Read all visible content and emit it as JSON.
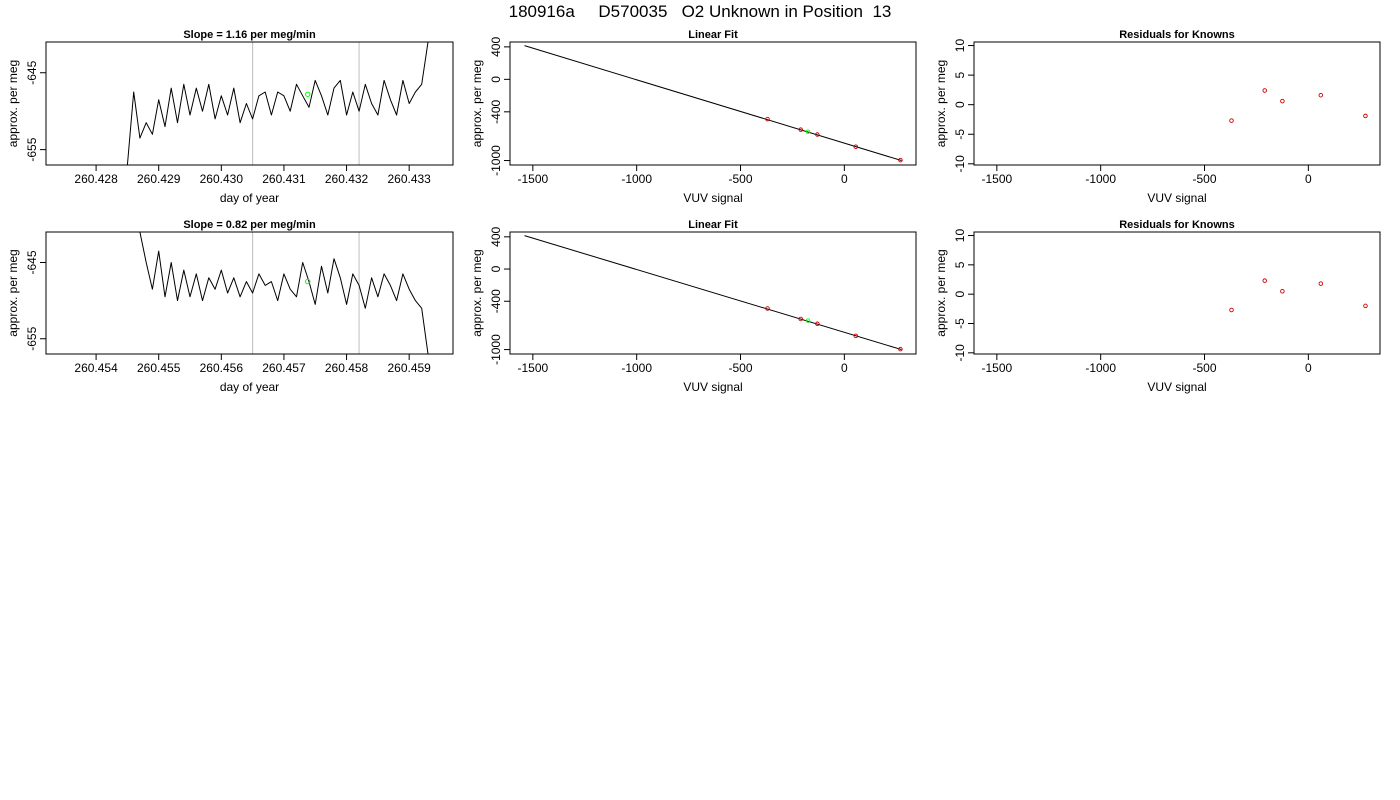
{
  "title": "180916a     D570035   O2 Unknown in Position  13",
  "chart_data": [
    {
      "type": "line",
      "title": "Slope =  1.16  per meg/min",
      "xlabel": "day of year",
      "ylabel": "approx. per meg",
      "xlim": [
        260.4272,
        260.4337
      ],
      "ylim": [
        -657,
        -641
      ],
      "xticks": [
        260.428,
        260.429,
        260.43,
        260.431,
        260.432,
        260.433
      ],
      "xtick_labels": [
        "260.428",
        "260.429",
        "260.430",
        "260.431",
        "260.432",
        "260.433"
      ],
      "yticks": [
        -645,
        -655
      ],
      "ytick_labels": [
        "-645",
        "-655"
      ],
      "vlines": [
        260.4305,
        260.4322
      ],
      "line_color": "#000000",
      "vline_color": "#bebebe",
      "marker_color": "#00ff00",
      "series": [
        {
          "x": [
            260.4285,
            260.4286,
            260.4287,
            260.4288,
            260.4289,
            260.429,
            260.4291,
            260.4292,
            260.4293,
            260.4294,
            260.4295,
            260.4296,
            260.4297,
            260.4298,
            260.4299,
            260.43,
            260.4301,
            260.4302,
            260.4303,
            260.4304,
            260.4305,
            260.4306,
            260.4307,
            260.4308,
            260.4309,
            260.431,
            260.4311,
            260.4312,
            260.4313,
            260.4314,
            260.4315,
            260.4316,
            260.4317,
            260.4318,
            260.4319,
            260.432,
            260.4321,
            260.4322,
            260.4323,
            260.4324,
            260.4325,
            260.4326,
            260.4327,
            260.4328,
            260.4329,
            260.433,
            260.4331,
            260.4332,
            260.4333
          ],
          "y": [
            -657,
            -647.5,
            -653.5,
            -651.5,
            -653,
            -648.5,
            -652,
            -647,
            -651.5,
            -646.5,
            -650.5,
            -647,
            -650,
            -646.5,
            -651,
            -648,
            -650.5,
            -647,
            -651.5,
            -649,
            -651,
            -648,
            -647.5,
            -650.5,
            -647.5,
            -648,
            -650,
            -646.5,
            -648,
            -649.5,
            -646,
            -648,
            -650.5,
            -647,
            -646,
            -650.5,
            -647.5,
            -650,
            -646.5,
            -649,
            -650.5,
            -646,
            -648.5,
            -650.5,
            -646,
            -649,
            -647.5,
            -646.5,
            -641
          ]
        }
      ],
      "marker": {
        "x": 260.43138,
        "y": -647.8
      }
    },
    {
      "type": "scatter",
      "title": "Linear Fit",
      "xlabel": "VUV signal",
      "ylabel": "approx. per meg",
      "xlim": [
        -1610,
        345
      ],
      "ylim": [
        -1055,
        460
      ],
      "xticks": [
        -1500,
        -1000,
        -500,
        0
      ],
      "xtick_labels": [
        "-1500",
        "-1000",
        "-500",
        "0"
      ],
      "yticks": [
        400,
        0,
        -400,
        -1000
      ],
      "ytick_labels": [
        "400",
        "0",
        "-400",
        "-1000"
      ],
      "fit_line": {
        "x": [
          -1540,
          275
        ],
        "y": [
          415,
          -1000
        ]
      },
      "points": {
        "x": [
          -370,
          -210,
          -130,
          55,
          270
        ],
        "y": [
          -490,
          -620,
          -680,
          -830,
          -995
        ]
      },
      "unknown": {
        "x": [
          -175
        ],
        "y": [
          -645
        ]
      },
      "point_color": "#cd0000",
      "unknown_color": "#00ff00"
    },
    {
      "type": "scatter",
      "title": "Residuals for Knowns",
      "xlabel": "VUV signal",
      "ylabel": "approx. per meg",
      "xlim": [
        -1610,
        345
      ],
      "ylim": [
        -10.2,
        10.6
      ],
      "xticks": [
        -1500,
        -1000,
        -500,
        0
      ],
      "xtick_labels": [
        "-1500",
        "-1000",
        "-500",
        "0"
      ],
      "yticks": [
        10,
        5,
        0,
        -5,
        -10
      ],
      "ytick_labels": [
        "10",
        "5",
        "0",
        "-5",
        "-10"
      ],
      "points": {
        "x": [
          -370,
          -210,
          -125,
          60,
          275
        ],
        "y": [
          -2.7,
          2.4,
          0.6,
          1.6,
          -1.9
        ]
      },
      "point_color": "#cd0000"
    },
    {
      "type": "line",
      "title": "Slope =  0.82  per meg/min",
      "xlabel": "day of year",
      "ylabel": "approx. per meg",
      "xlim": [
        260.4532,
        260.4597
      ],
      "ylim": [
        -657,
        -641
      ],
      "xticks": [
        260.454,
        260.455,
        260.456,
        260.457,
        260.458,
        260.459
      ],
      "xtick_labels": [
        "260.454",
        "260.455",
        "260.456",
        "260.457",
        "260.458",
        "260.459"
      ],
      "yticks": [
        -645,
        -655
      ],
      "ytick_labels": [
        "-645",
        "-655"
      ],
      "vlines": [
        260.4565,
        260.4582
      ],
      "line_color": "#000000",
      "vline_color": "#bebebe",
      "marker_color": "#00ff00",
      "series": [
        {
          "x": [
            260.4547,
            260.4548,
            260.4549,
            260.455,
            260.4551,
            260.4552,
            260.4553,
            260.4554,
            260.4555,
            260.4556,
            260.4557,
            260.4558,
            260.4559,
            260.456,
            260.4561,
            260.4562,
            260.4563,
            260.4564,
            260.4565,
            260.4566,
            260.4567,
            260.4568,
            260.4569,
            260.457,
            260.4571,
            260.4572,
            260.4573,
            260.4574,
            260.4575,
            260.4576,
            260.4577,
            260.4578,
            260.4579,
            260.458,
            260.4581,
            260.4582,
            260.4583,
            260.4584,
            260.4585,
            260.4586,
            260.4587,
            260.4588,
            260.4589,
            260.459,
            260.4591,
            260.4592,
            260.4593
          ],
          "y": [
            -641,
            -645,
            -648.5,
            -643.5,
            -649.5,
            -645,
            -650,
            -646,
            -649.5,
            -646.5,
            -650,
            -647,
            -648.5,
            -646,
            -649,
            -647,
            -649.5,
            -647.5,
            -649,
            -646.5,
            -648,
            -647.5,
            -650,
            -646.5,
            -648.5,
            -649.5,
            -645,
            -647.5,
            -650.5,
            -645.5,
            -649,
            -644.5,
            -647,
            -650.5,
            -646.5,
            -648,
            -651,
            -647,
            -649.5,
            -646.5,
            -648,
            -650,
            -646.5,
            -648.5,
            -650,
            -651,
            -657
          ]
        }
      ],
      "marker": {
        "x": 260.45738,
        "y": -647.5
      }
    },
    {
      "type": "scatter",
      "title": "Linear Fit",
      "xlabel": "VUV signal",
      "ylabel": "approx. per meg",
      "xlim": [
        -1610,
        345
      ],
      "ylim": [
        -1055,
        460
      ],
      "xticks": [
        -1500,
        -1000,
        -500,
        0
      ],
      "xtick_labels": [
        "-1500",
        "-1000",
        "-500",
        "0"
      ],
      "yticks": [
        400,
        0,
        -400,
        -1000
      ],
      "ytick_labels": [
        "400",
        "0",
        "-400",
        "-1000"
      ],
      "fit_line": {
        "x": [
          -1540,
          275
        ],
        "y": [
          415,
          -1000
        ]
      },
      "points": {
        "x": [
          -370,
          -210,
          -130,
          55,
          270
        ],
        "y": [
          -490,
          -620,
          -680,
          -830,
          -995
        ]
      },
      "unknown": {
        "x": [
          -175
        ],
        "y": [
          -640
        ]
      },
      "point_color": "#cd0000",
      "unknown_color": "#00ff00"
    },
    {
      "type": "scatter",
      "title": "Residuals for Knowns",
      "xlabel": "VUV signal",
      "ylabel": "approx. per meg",
      "xlim": [
        -1610,
        345
      ],
      "ylim": [
        -10.2,
        10.6
      ],
      "xticks": [
        -1500,
        -1000,
        -500,
        0
      ],
      "xtick_labels": [
        "-1500",
        "-1000",
        "-500",
        "0"
      ],
      "yticks": [
        10,
        5,
        0,
        -5,
        -10
      ],
      "ytick_labels": [
        "10",
        "5",
        "0",
        "-5",
        "-10"
      ],
      "points": {
        "x": [
          -370,
          -210,
          -125,
          60,
          275
        ],
        "y": [
          -2.7,
          2.3,
          0.5,
          1.8,
          -2.0
        ]
      },
      "point_color": "#cd0000"
    }
  ]
}
